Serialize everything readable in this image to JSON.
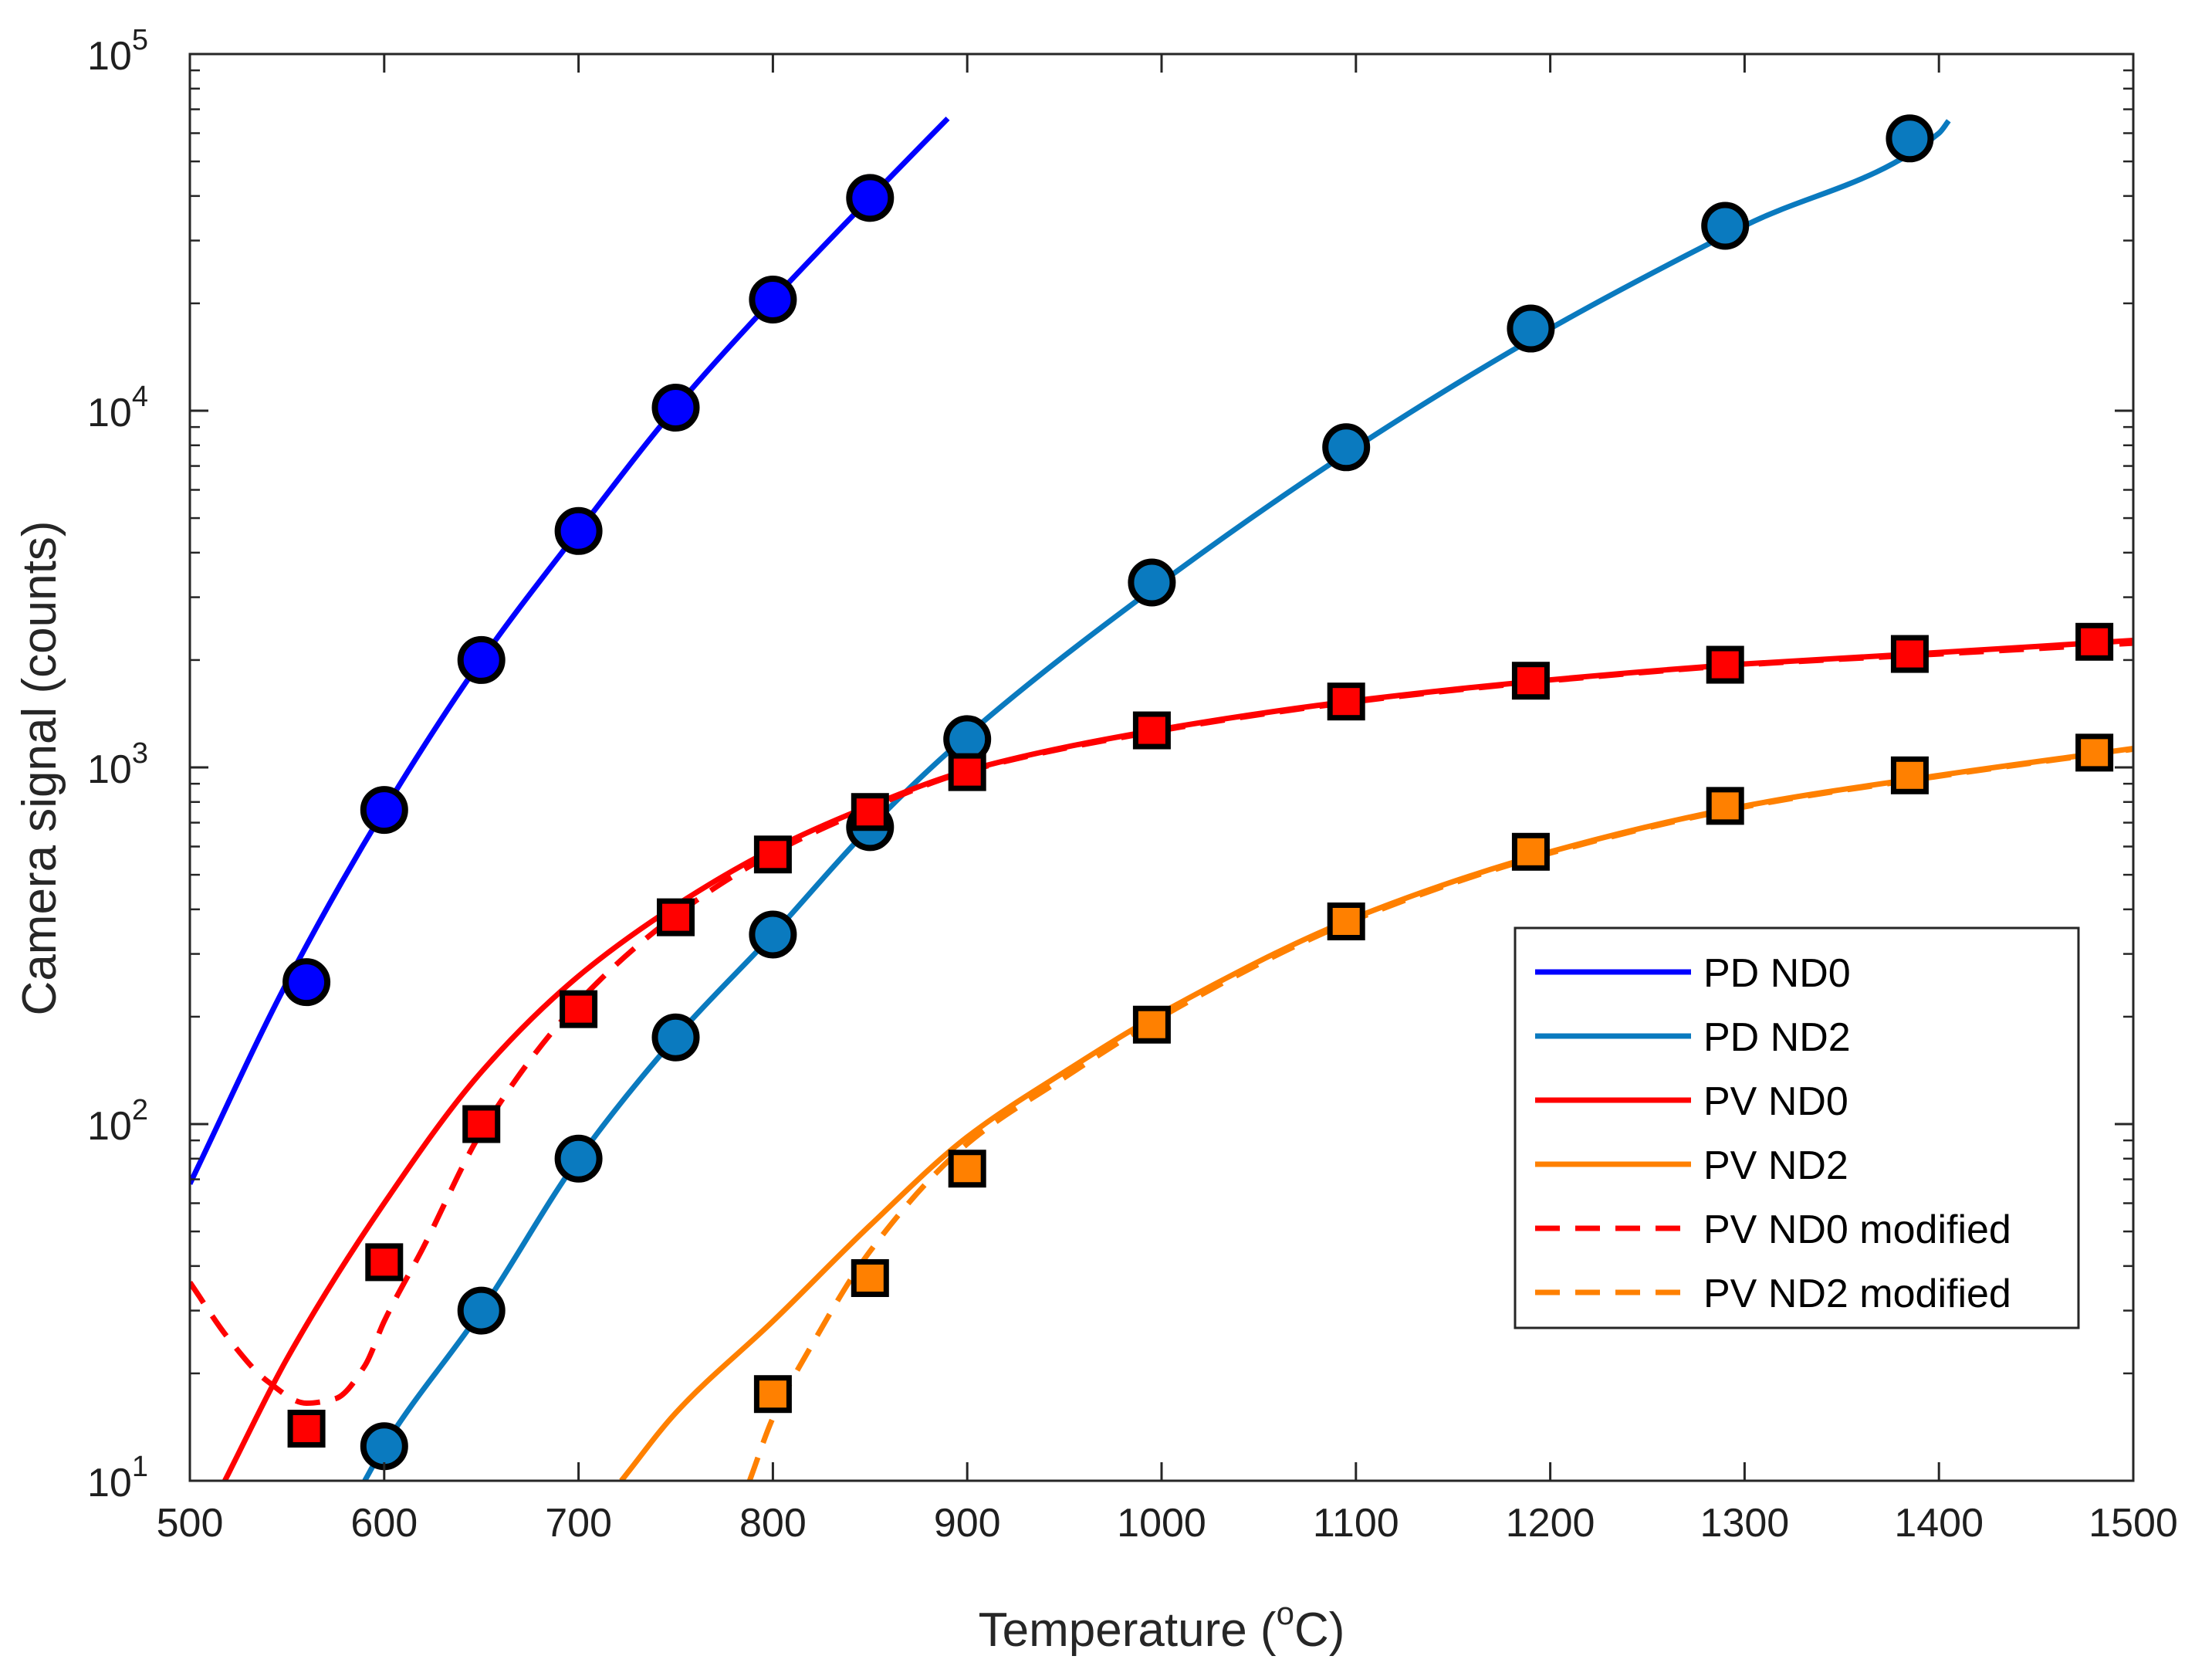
{
  "chart_data": {
    "type": "line",
    "title": "",
    "xlabel": {
      "main": "Temperature (",
      "sup": "o",
      "unit": "C)"
    },
    "ylabel": "Camera signal (counts)",
    "xlim": [
      500,
      1500
    ],
    "ylim": [
      10,
      100000
    ],
    "yscale": "log",
    "x_ticks": [
      500,
      600,
      700,
      800,
      900,
      1000,
      1100,
      1200,
      1300,
      1400,
      1500
    ],
    "y_ticks": [
      {
        "value": 10,
        "base": "10",
        "exp": "1"
      },
      {
        "value": 100,
        "base": "10",
        "exp": "2"
      },
      {
        "value": 1000,
        "base": "10",
        "exp": "3"
      },
      {
        "value": 10000,
        "base": "10",
        "exp": "4"
      },
      {
        "value": 100000,
        "base": "10",
        "exp": "5"
      }
    ],
    "legend_position": "lower-right",
    "series": [
      {
        "name": "PD ND0",
        "color": "#0000ff",
        "dash": "solid",
        "marker": "circle",
        "curve_x": [
          500,
          550,
          600,
          650,
          700,
          750,
          800,
          850,
          890
        ],
        "curve_y": [
          68,
          250,
          760,
          2000,
          4600,
          10200,
          20500,
          39500,
          66000
        ],
        "points_x": [
          560,
          600,
          650,
          700,
          750,
          800,
          850
        ],
        "points_y": [
          250,
          760,
          2000,
          4600,
          10200,
          20500,
          39500
        ]
      },
      {
        "name": "PD ND2",
        "color": "#0a7abf",
        "dash": "solid",
        "marker": "circle",
        "curve_x": [
          590,
          600,
          650,
          700,
          750,
          800,
          850,
          900,
          1000,
          1100,
          1200,
          1300,
          1400,
          1405
        ],
        "curve_y": [
          10,
          12.5,
          30,
          80,
          175,
          340,
          680,
          1230,
          3300,
          7900,
          17000,
          33000,
          60000,
          65000
        ],
        "points_x": [
          600,
          650,
          700,
          750,
          800,
          850,
          900,
          995,
          1095,
          1190,
          1290,
          1385
        ],
        "points_y": [
          12.5,
          30,
          80,
          175,
          340,
          680,
          1200,
          3300,
          7900,
          17000,
          33000,
          58000
        ]
      },
      {
        "name": "PV ND0",
        "color": "#ff0000",
        "dash": "solid",
        "marker": "none",
        "curve_x": [
          518,
          550,
          600,
          650,
          700,
          750,
          800,
          850,
          900,
          1000,
          1100,
          1200,
          1300,
          1400,
          1500
        ],
        "curve_y": [
          10,
          22,
          60,
          140,
          260,
          410,
          590,
          780,
          980,
          1280,
          1540,
          1760,
          1950,
          2100,
          2270
        ]
      },
      {
        "name": "PV ND2",
        "color": "#ff8000",
        "dash": "solid",
        "marker": "none",
        "curve_x": [
          722,
          750,
          800,
          850,
          900,
          950,
          1000,
          1100,
          1200,
          1300,
          1400,
          1500
        ],
        "curve_y": [
          10,
          15.5,
          28,
          52,
          92,
          140,
          205,
          380,
          580,
          780,
          950,
          1130
        ]
      },
      {
        "name": "PV ND0 modified",
        "color": "#ff0000",
        "dash": "dashed",
        "marker": "square",
        "curve_x": [
          500,
          520,
          540,
          560,
          575,
          590,
          600,
          620,
          650,
          700,
          750,
          800,
          850,
          900,
          1000,
          1100,
          1200,
          1300,
          1400,
          1500
        ],
        "curve_y": [
          36,
          25,
          19,
          16.5,
          17,
          21,
          28,
          45,
          95,
          220,
          385,
          575,
          770,
          975,
          1270,
          1530,
          1750,
          1940,
          2080,
          2230
        ],
        "points_x": [
          560,
          600,
          650,
          700,
          750,
          800,
          850,
          900,
          995,
          1095,
          1190,
          1290,
          1385,
          1480
        ],
        "points_y": [
          14,
          41,
          100,
          210,
          380,
          570,
          750,
          970,
          1270,
          1530,
          1750,
          1940,
          2080,
          2250
        ]
      },
      {
        "name": "PV ND2 modified",
        "color": "#ff8000",
        "dash": "dashed",
        "marker": "square",
        "curve_x": [
          788,
          800,
          820,
          850,
          900,
          950,
          1000,
          1100,
          1200,
          1300,
          1400,
          1500
        ],
        "curve_y": [
          10,
          15,
          24,
          44,
          88,
          135,
          200,
          375,
          575,
          775,
          945,
          1125
        ],
        "points_x": [
          800,
          850,
          900,
          995,
          1095,
          1190,
          1290,
          1385,
          1480
        ],
        "points_y": [
          17.5,
          37,
          75,
          190,
          370,
          580,
          780,
          950,
          1100
        ]
      }
    ]
  }
}
